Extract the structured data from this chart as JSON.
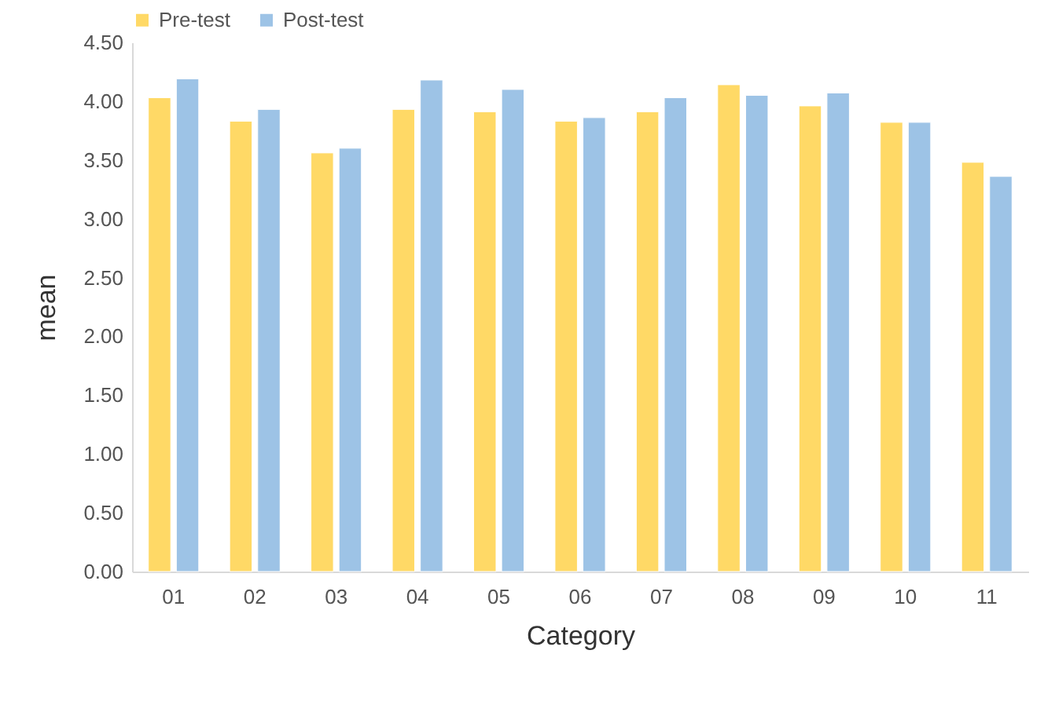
{
  "chart_data": {
    "type": "bar",
    "xlabel": "Category",
    "ylabel": "mean",
    "categories": [
      "01",
      "02",
      "03",
      "04",
      "05",
      "06",
      "07",
      "08",
      "09",
      "10",
      "11"
    ],
    "series": [
      {
        "name": "Pre-test",
        "color": "#ffd966",
        "values": [
          4.03,
          3.83,
          3.56,
          3.93,
          3.91,
          3.83,
          3.91,
          4.14,
          3.96,
          3.82,
          3.48
        ]
      },
      {
        "name": "Post-test",
        "color": "#9dc3e6",
        "values": [
          4.19,
          3.93,
          3.6,
          4.18,
          4.1,
          3.86,
          4.03,
          4.05,
          4.07,
          3.82,
          3.36
        ]
      }
    ],
    "ylim": [
      0,
      4.5
    ],
    "yticks": [
      {
        "value": 0,
        "label": "0.00"
      },
      {
        "value": 0.5,
        "label": "0.50"
      },
      {
        "value": 1,
        "label": "1.00"
      },
      {
        "value": 1.5,
        "label": "1.50"
      },
      {
        "value": 2,
        "label": "2.00"
      },
      {
        "value": 2.5,
        "label": "2.50"
      },
      {
        "value": 3,
        "label": "3.00"
      },
      {
        "value": 3.5,
        "label": "3.50"
      },
      {
        "value": 4,
        "label": "4.00"
      },
      {
        "value": 4.5,
        "label": "4.50"
      }
    ],
    "grid": false,
    "legend": "top"
  }
}
